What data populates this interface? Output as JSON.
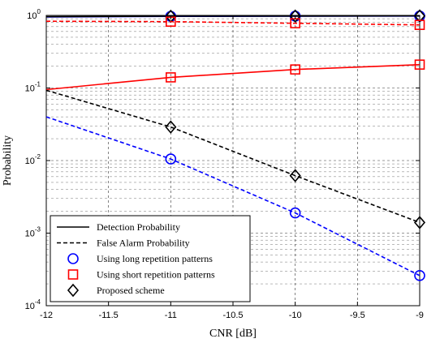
{
  "chart_data": {
    "type": "line",
    "xlabel": "CNR [dB]",
    "ylabel": "Probability",
    "xlim": [
      -12,
      -9
    ],
    "ylim": [
      0.0001,
      1
    ],
    "yscale": "log",
    "grid": true,
    "legend_position": "bottom-left",
    "x_ticks": [
      "-12",
      "-11.5",
      "-11",
      "-10.5",
      "-10",
      "-9.5",
      "-9"
    ],
    "y_ticks": [
      {
        "base": "10",
        "exp": "-4"
      },
      {
        "base": "10",
        "exp": "-3"
      },
      {
        "base": "10",
        "exp": "-2"
      },
      {
        "base": "10",
        "exp": "-1"
      },
      {
        "base": "10",
        "exp": "0"
      }
    ],
    "legend": [
      {
        "label": "Detection Probability",
        "style": "solid-line"
      },
      {
        "label": "False Alarm Probability",
        "style": "dashed-line"
      },
      {
        "label": "Using long repetition patterns",
        "marker": "circle",
        "color": "#0000ff"
      },
      {
        "label": "Using short repetition patterns",
        "marker": "square",
        "color": "#ff0000"
      },
      {
        "label": "Proposed scheme",
        "marker": "diamond",
        "color": "#000000"
      }
    ],
    "series": [
      {
        "curve": "long-detection",
        "color": "#0000ff",
        "dash": false,
        "marker": "circle",
        "x": [
          -12,
          -11,
          -10,
          -9
        ],
        "y": [
          0.95,
          0.97,
          0.975,
          0.98
        ],
        "marked": [
          -11,
          -10,
          -9
        ]
      },
      {
        "curve": "short-detection",
        "color": "#ff0000",
        "dash": false,
        "marker": "square",
        "x": [
          -12,
          -11,
          -10,
          -9
        ],
        "y": [
          0.095,
          0.14,
          0.18,
          0.21
        ],
        "marked": [
          -11,
          -10,
          -9
        ]
      },
      {
        "curve": "proposed-detection",
        "color": "#000000",
        "dash": false,
        "marker": "diamond",
        "x": [
          -12,
          -11,
          -10,
          -9
        ],
        "y": [
          0.96,
          0.975,
          0.98,
          0.985
        ],
        "marked": [
          -11,
          -10,
          -9
        ]
      },
      {
        "curve": "short-false-alarm",
        "color": "#ff0000",
        "dash": true,
        "marker": "square",
        "x": [
          -12,
          -11,
          -10,
          -9
        ],
        "y": [
          0.83,
          0.82,
          0.78,
          0.74
        ],
        "marked": [
          -11,
          -10,
          -9
        ]
      },
      {
        "curve": "long-false-alarm",
        "color": "#0000ff",
        "dash": true,
        "marker": "circle",
        "x": [
          -12,
          -11,
          -10,
          -9
        ],
        "y": [
          0.04,
          0.0105,
          0.0019,
          0.00026
        ],
        "marked": [
          -11,
          -10,
          -9
        ]
      },
      {
        "curve": "proposed-false-alarm",
        "color": "#000000",
        "dash": true,
        "marker": "diamond",
        "x": [
          -12,
          -11,
          -10,
          -9
        ],
        "y": [
          0.093,
          0.029,
          0.0062,
          0.0014
        ],
        "marked": [
          -11,
          -10,
          -9
        ]
      }
    ]
  }
}
